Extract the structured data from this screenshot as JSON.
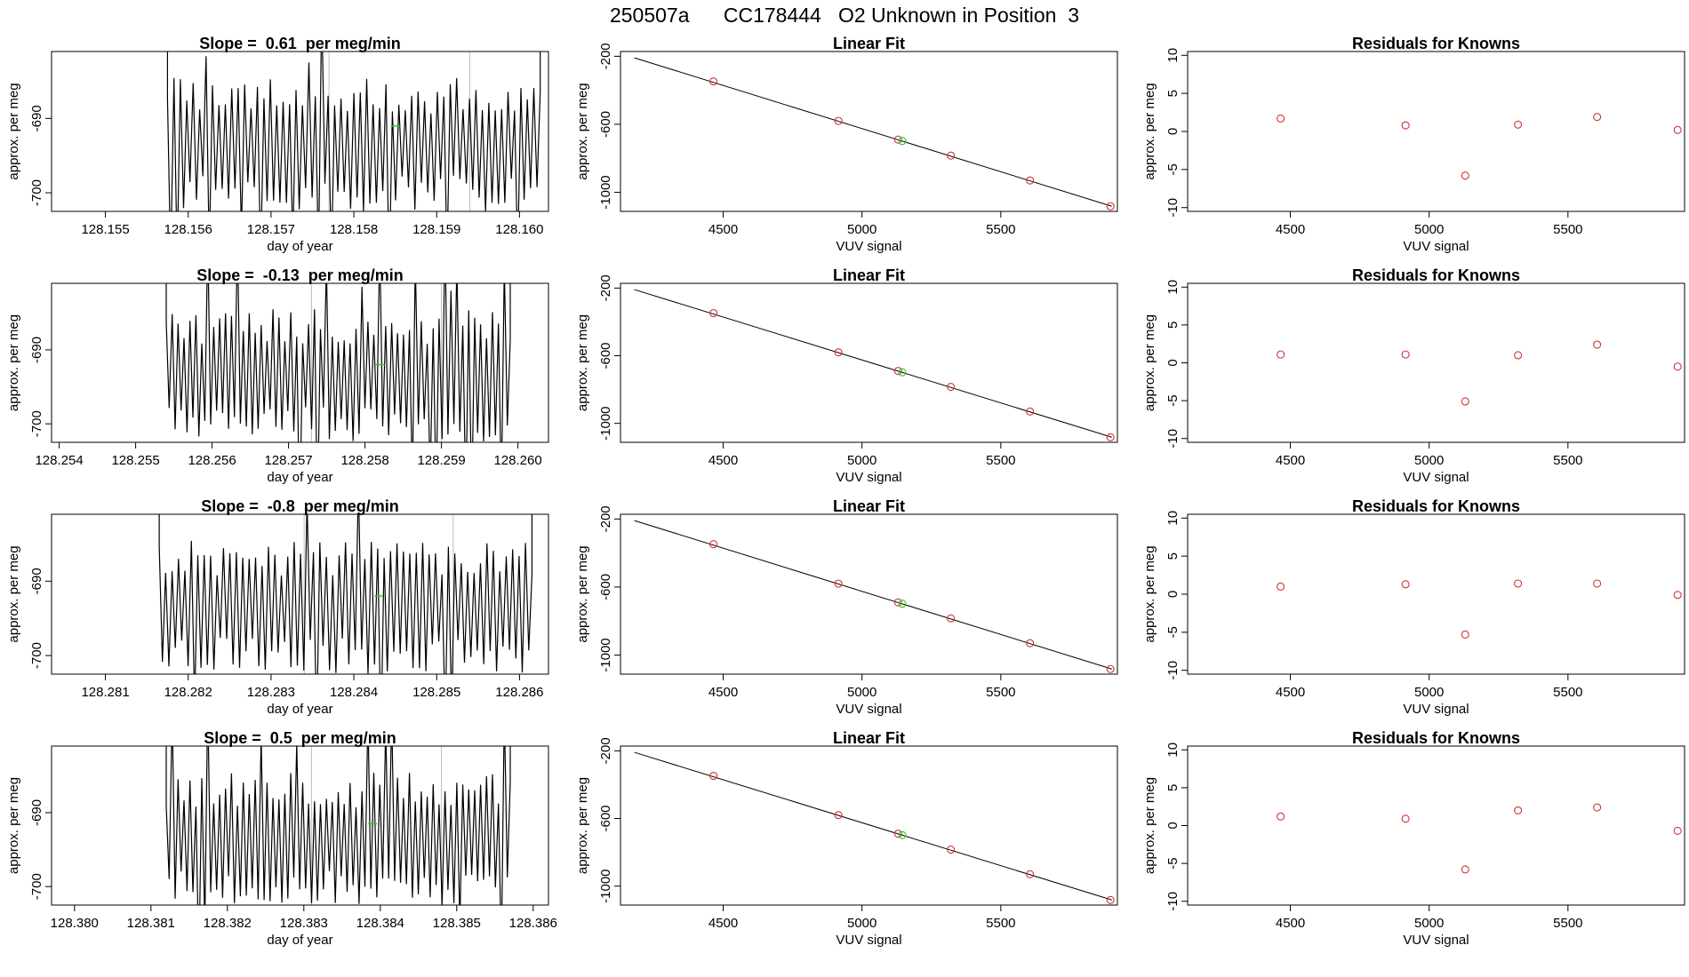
{
  "page_title": "250507a      CC178444   O2 Unknown in Position  3",
  "colors": {
    "trace": "#000000",
    "known_point": "#cd3333",
    "unknown_point": "#22cc22",
    "marker_line": "#bebebe",
    "axis": "#000000"
  },
  "chart_data": [
    {
      "type": "line",
      "row": 1,
      "col": 1,
      "title": "Slope =  0.61  per meg/min",
      "xlabel": "day of year",
      "ylabel": "approx. per meg",
      "xlim": [
        128.15435,
        128.16035
      ],
      "ylim": [
        -702.5,
        -681
      ],
      "xticks": [
        "128.155",
        "128.156",
        "128.157",
        "128.158",
        "128.159",
        "128.160"
      ],
      "yticks": [
        "-690",
        "-700"
      ],
      "trace": {
        "x_start": 128.15575,
        "x_end": 128.16025,
        "cycles": 58,
        "center": -693.5,
        "amplitude": 7.5
      },
      "vertical_markers": [
        128.1577,
        128.1594
      ],
      "unknown_mean": {
        "x": 128.1585,
        "y": -691
      }
    },
    {
      "type": "scatter",
      "row": 1,
      "col": 2,
      "title": "Linear Fit",
      "xlabel": "VUV signal",
      "ylabel": "approx. per meg",
      "xlim": [
        4130,
        5920
      ],
      "ylim": [
        -1112,
        -172
      ],
      "xticks": [
        "4500",
        "5000",
        "5500"
      ],
      "yticks": [
        "-200",
        "-600",
        "-1000"
      ],
      "fit_line": [
        [
          4180,
          -209
        ],
        [
          5900,
          -1082
        ]
      ],
      "knowns": [
        [
          4465,
          -348
        ],
        [
          4915,
          -580
        ],
        [
          5130,
          -690
        ],
        [
          5320,
          -784
        ],
        [
          5605,
          -930
        ],
        [
          5895,
          -1082
        ]
      ],
      "unknown": [
        [
          5145,
          -698
        ]
      ]
    },
    {
      "type": "scatter",
      "row": 1,
      "col": 3,
      "title": "Residuals for Knowns",
      "xlabel": "VUV signal",
      "ylabel": "approx. per meg",
      "xlim": [
        4130,
        5920
      ],
      "ylim": [
        -10.5,
        10.5
      ],
      "xticks": [
        "4500",
        "5000",
        "5500"
      ],
      "yticks": [
        "10",
        "5",
        "0",
        "-5",
        "-10"
      ],
      "points": [
        [
          4465,
          1.7
        ],
        [
          4915,
          0.8
        ],
        [
          5130,
          -5.8
        ],
        [
          5320,
          0.9
        ],
        [
          5605,
          1.9
        ],
        [
          5895,
          0.2
        ]
      ]
    },
    {
      "type": "line",
      "row": 2,
      "col": 1,
      "title": "Slope =  -0.13  per meg/min",
      "xlabel": "day of year",
      "ylabel": "approx. per meg",
      "xlim": [
        128.2539,
        128.2604
      ],
      "ylim": [
        -702.5,
        -681
      ],
      "xticks": [
        "128.254",
        "128.255",
        "128.256",
        "128.257",
        "128.258",
        "128.259",
        "128.260"
      ],
      "yticks": [
        "-690",
        "-700"
      ],
      "trace": {
        "x_start": 128.2554,
        "x_end": 128.2599,
        "cycles": 58,
        "center": -693.5,
        "amplitude": 7.5
      },
      "vertical_markers": [
        128.2573,
        128.259
      ],
      "unknown_mean": {
        "x": 128.2582,
        "y": -692
      }
    },
    {
      "type": "scatter",
      "row": 2,
      "col": 2,
      "title": "Linear Fit",
      "xlabel": "VUV signal",
      "ylabel": "approx. per meg",
      "xlim": [
        4130,
        5920
      ],
      "ylim": [
        -1112,
        -172
      ],
      "xticks": [
        "4500",
        "5000",
        "5500"
      ],
      "yticks": [
        "-200",
        "-600",
        "-1000"
      ],
      "fit_line": [
        [
          4180,
          -209
        ],
        [
          5900,
          -1082
        ]
      ],
      "knowns": [
        [
          4465,
          -348
        ],
        [
          4915,
          -580
        ],
        [
          5130,
          -690
        ],
        [
          5320,
          -784
        ],
        [
          5605,
          -930
        ],
        [
          5895,
          -1082
        ]
      ],
      "unknown": [
        [
          5145,
          -698
        ]
      ]
    },
    {
      "type": "scatter",
      "row": 2,
      "col": 3,
      "title": "Residuals for Knowns",
      "xlabel": "VUV signal",
      "ylabel": "approx. per meg",
      "xlim": [
        4130,
        5920
      ],
      "ylim": [
        -10.5,
        10.5
      ],
      "xticks": [
        "4500",
        "5000",
        "5500"
      ],
      "yticks": [
        "10",
        "5",
        "0",
        "-5",
        "-10"
      ],
      "points": [
        [
          4465,
          1.1
        ],
        [
          4915,
          1.1
        ],
        [
          5130,
          -5.1
        ],
        [
          5320,
          1.0
        ],
        [
          5605,
          2.4
        ],
        [
          5895,
          -0.5
        ]
      ]
    },
    {
      "type": "line",
      "row": 3,
      "col": 1,
      "title": "Slope =  -0.8  per meg/min",
      "xlabel": "day of year",
      "ylabel": "approx. per meg",
      "xlim": [
        128.28035,
        128.28635
      ],
      "ylim": [
        -702.5,
        -681
      ],
      "xticks": [
        "128.281",
        "128.282",
        "128.283",
        "128.284",
        "128.285",
        "128.286"
      ],
      "yticks": [
        "-690",
        "-700"
      ],
      "trace": {
        "x_start": 128.28165,
        "x_end": 128.28615,
        "cycles": 58,
        "center": -693.5,
        "amplitude": 7.5
      },
      "vertical_markers": [
        128.2834,
        128.2852
      ],
      "unknown_mean": {
        "x": 128.2843,
        "y": -692
      }
    },
    {
      "type": "scatter",
      "row": 3,
      "col": 2,
      "title": "Linear Fit",
      "xlabel": "VUV signal",
      "ylabel": "approx. per meg",
      "xlim": [
        4130,
        5920
      ],
      "ylim": [
        -1112,
        -172
      ],
      "xticks": [
        "4500",
        "5000",
        "5500"
      ],
      "yticks": [
        "-200",
        "-600",
        "-1000"
      ],
      "fit_line": [
        [
          4180,
          -209
        ],
        [
          5900,
          -1082
        ]
      ],
      "knowns": [
        [
          4465,
          -348
        ],
        [
          4915,
          -580
        ],
        [
          5130,
          -690
        ],
        [
          5320,
          -784
        ],
        [
          5605,
          -930
        ],
        [
          5895,
          -1082
        ]
      ],
      "unknown": [
        [
          5145,
          -698
        ]
      ]
    },
    {
      "type": "scatter",
      "row": 3,
      "col": 3,
      "title": "Residuals for Knowns",
      "xlabel": "VUV signal",
      "ylabel": "approx. per meg",
      "xlim": [
        4130,
        5920
      ],
      "ylim": [
        -10.5,
        10.5
      ],
      "xticks": [
        "4500",
        "5000",
        "5500"
      ],
      "yticks": [
        "10",
        "5",
        "0",
        "-5",
        "-10"
      ],
      "points": [
        [
          4465,
          1.0
        ],
        [
          4915,
          1.3
        ],
        [
          5130,
          -5.3
        ],
        [
          5320,
          1.4
        ],
        [
          5605,
          1.4
        ],
        [
          5895,
          -0.1
        ]
      ]
    },
    {
      "type": "line",
      "row": 4,
      "col": 1,
      "title": "Slope =  0.5  per meg/min",
      "xlabel": "day of year",
      "ylabel": "approx. per meg",
      "xlim": [
        128.3797,
        128.3862
      ],
      "ylim": [
        -702.5,
        -681
      ],
      "xticks": [
        "128.380",
        "128.381",
        "128.382",
        "128.383",
        "128.384",
        "128.385",
        "128.386"
      ],
      "yticks": [
        "-690",
        "-700"
      ],
      "trace": {
        "x_start": 128.3812,
        "x_end": 128.3857,
        "cycles": 58,
        "center": -693.5,
        "amplitude": 7.5
      },
      "vertical_markers": [
        128.3831,
        128.3848
      ],
      "unknown_mean": {
        "x": 128.3839,
        "y": -691.5
      }
    },
    {
      "type": "scatter",
      "row": 4,
      "col": 2,
      "title": "Linear Fit",
      "xlabel": "VUV signal",
      "ylabel": "approx. per meg",
      "xlim": [
        4130,
        5920
      ],
      "ylim": [
        -1112,
        -172
      ],
      "xticks": [
        "4500",
        "5000",
        "5500"
      ],
      "yticks": [
        "-200",
        "-600",
        "-1000"
      ],
      "fit_line": [
        [
          4180,
          -209
        ],
        [
          5900,
          -1082
        ]
      ],
      "knowns": [
        [
          4465,
          -348
        ],
        [
          4915,
          -580
        ],
        [
          5130,
          -690
        ],
        [
          5320,
          -784
        ],
        [
          5605,
          -930
        ],
        [
          5895,
          -1082
        ]
      ],
      "unknown": [
        [
          5145,
          -698
        ]
      ]
    },
    {
      "type": "scatter",
      "row": 4,
      "col": 3,
      "title": "Residuals for Knowns",
      "xlabel": "VUV signal",
      "ylabel": "approx. per meg",
      "xlim": [
        4130,
        5920
      ],
      "ylim": [
        -10.5,
        10.5
      ],
      "xticks": [
        "4500",
        "5000",
        "5500"
      ],
      "yticks": [
        "10",
        "5",
        "0",
        "-5",
        "-10"
      ],
      "points": [
        [
          4465,
          1.2
        ],
        [
          4915,
          0.9
        ],
        [
          5130,
          -5.8
        ],
        [
          5320,
          2.0
        ],
        [
          5605,
          2.4
        ],
        [
          5895,
          -0.7
        ]
      ]
    }
  ]
}
